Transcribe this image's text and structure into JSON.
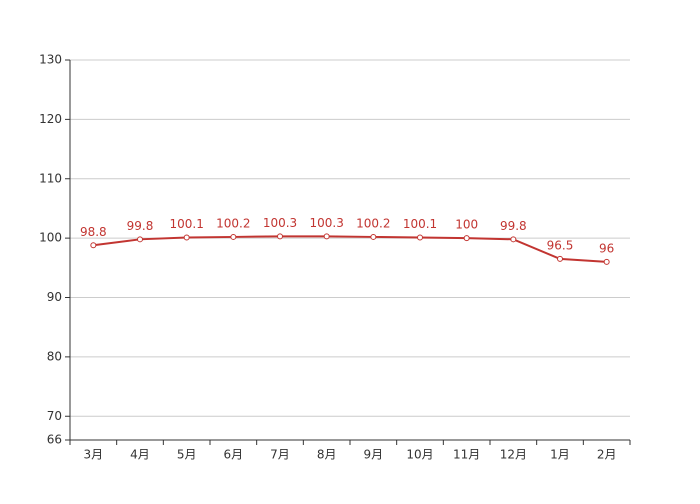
{
  "chart_data": {
    "type": "line",
    "categories": [
      "3月",
      "4月",
      "5月",
      "6月",
      "7月",
      "8月",
      "9月",
      "10月",
      "11月",
      "12月",
      "1月",
      "2月"
    ],
    "series": [
      {
        "values": [
          98.8,
          99.8,
          100.1,
          100.2,
          100.3,
          100.3,
          100.2,
          100.1,
          100,
          99.8,
          96.5,
          96
        ],
        "color": "#c23531"
      }
    ],
    "ylim": [
      66,
      130
    ],
    "yticks": [
      66,
      70,
      80,
      90,
      100,
      110,
      120,
      130
    ],
    "grid": true
  }
}
